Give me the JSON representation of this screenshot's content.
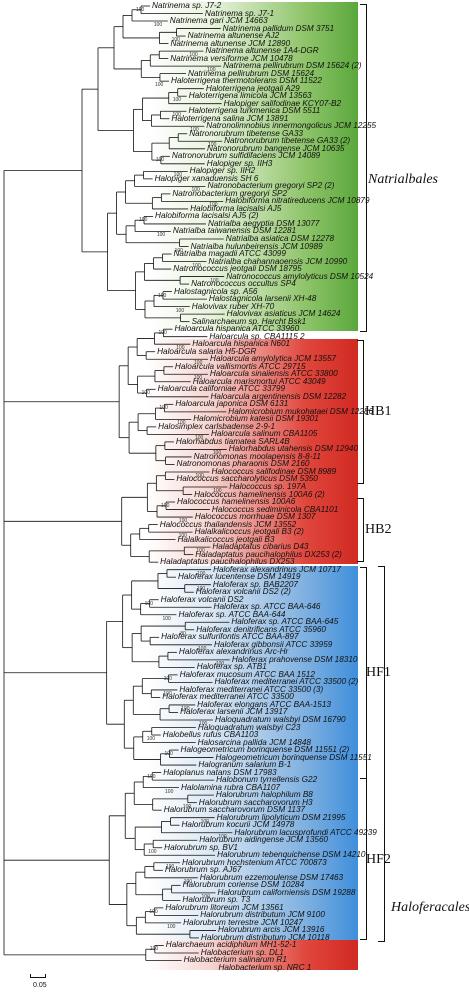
{
  "taxa": [
    "Natrinema sp. J7-2",
    "Natrinema sp. J7-1",
    "Natrinema gari JCM 14663",
    "Natrinema pallidum DSM 3751",
    "Natrinema altunense AJ2",
    "Natrinema altunense JCM 12890",
    "Natrinema altunense 1A4-DGR",
    "Natrinema versiforme JCM 10478",
    "Natrinema pellirubrum DSM 15624 (2)",
    "Natrinema pellirubrum DSM 15624",
    "Haloterrigena thermotolerans DSM 11522",
    "Haloterrigena jeotgali A29",
    "Haloterrigena limicola JCM 13563",
    "Halopiger salifodinae KCY07-B2",
    "Haloterrigena turkmenica DSM 5511",
    "Haloterrigena salina JCM 13891",
    "Natronolimnobius innermongolicus JCM 12255",
    "Natronorubrum tibetense GA33",
    "Natronorubrum tibetense GA33 (2)",
    "Natronorubrum bangense JCM 10635",
    "Natronorubrum sulfidifaciens JCM 14089",
    "Halopiger sp. IIH3",
    "Halopiger sp. IIH2",
    "Halopiger xanaduensis SH 6",
    "Natronobacterium gregoryi SP2 (2)",
    "Natronobacterium gregoryi SP2",
    "Halobiforma nitratireducens JCM 10879",
    "Halobiforma lacisalsi AJ5",
    "Halobiforma lacisalsi AJ5 (2)",
    "Natrialba aegyptia DSM 13077",
    "Natrialba taiwanensis DSM 12281",
    "Natrialba asiatica DSM 12278",
    "Natrialba hulunbeirensis JCM 10989",
    "Natrialba magadii ATCC 43099",
    "Natrialba chahannaoensis JCM 10990",
    "Natronococcus jeotgali DSM 18795",
    "Natronococcus amylolyticus DSM 10524",
    "Natronococcus occultus SP4",
    "Halostagnicola sp. A56",
    "Halostagnicola larsenii XH-48",
    "Halovivax ruber XH-70",
    "Halovivax asiaticus JCM 14624",
    "Salinarchaeum sp. Harcht Bsk1",
    "Haloarcula hispanica ATCC 33960",
    "Haloarcula sp. CBA1115 2",
    "Haloarcula hispanica N601",
    "Haloarcula salaria H5-DGR",
    "Haloarcula amylolytica JCM 13557",
    "Haloarcula vallismortis ATCC 29715",
    "Haloarcula sinaiiensis ATCC 33800",
    "Haloarcula marismortui ATCC 43049",
    "Haloarcula californiae ATCC 33799",
    "Haloarcula argentinensis DSM 12282",
    "Haloarcula japonica DSM 6131",
    "Halomicrobium mukohataei DSM 12286",
    "Halomicrobium katesii DSM 19301",
    "Halosimplex carlsbadense 2-9-1",
    "Haloarcula salinum CBA1105",
    "Halorhabdus tiamatea SARL4B",
    "Halorhabdus utahensis DSM 12940",
    "Natronomonas moolapensis 8-8-11",
    "Natronomonas pharaonis DSM 2160",
    "Halococcus salifodinae DSM 8989",
    "Halococcus saccharolyticus DSM 5350",
    "Halococcus sp. 197A",
    "Halococcus hamelinensis 100A6 (2)",
    "Halococcus hamelinensis 100A6",
    "Halococcus sediminicola CBA1101",
    "Halococcus morrhuae DSM 1307",
    "Halococcus thailandensis JCM 13552",
    "Halalkalicoccus jeotgali B3 (2)",
    "Halalkalicoccus jeotgali B3",
    "Haladaptatus cibarius D43",
    "Haladaptatus paucihalophilus DX253 (2)",
    "Haladaptatus paucihalophilus DX253",
    "Haloferax alexandrinus JCM 10717",
    "Haloferax lucentense DSM 14919",
    "Haloferax sp. BAB2207",
    "Haloferax volcanii DS2 (2)",
    "Haloferax volcanii DS2",
    "Haloferax sp. ATCC BAA-646",
    "Haloferax sp. ATCC BAA-644",
    "Haloferax sp. ATCC BAA-645",
    "Haloferax denitrificans ATCC 35960",
    "Haloferax sulfurifontis ATCC BAA-897",
    "Haloferax gibbonsii ATCC 33959",
    "Haloferax alexandrinus Arc-Hr",
    "Haloferax prahovense DSM 18310",
    "Haloferax sp. ATB1",
    "Haloferax mucosum ATCC BAA 1512",
    "Haloferax mediterranei ATCC 33500 (2)",
    "Haloferax mediterranei ATCC 33500 (3)",
    "Haloferax mediterranei ATCC 33500",
    "Haloferax elongans ATCC BAA-1513",
    "Haloferax larsenii JCM 13917",
    "Haloquadratum walsbyi DSM 16790",
    "Haloquadratum walsbyi C23",
    "Halobellus rufus CBA1103",
    "Halosarcina pallida JCM 14848",
    "Halogeometricum borinquense DSM 11551 (2)",
    "Halogeometricum borinquense DSM 11551",
    "Halogranum salarium B-1",
    "Haloplanus natans DSM 17983",
    "Halobonum tyrrellensis G22",
    "Halolamina rubra CBA1107",
    "Halorubrum halophilum B8",
    "Halorubrum saccharovorum H3",
    "Halorubrum saccharovorum DSM 1137",
    "Halorubrum lipolyticum DSM 21995",
    "Halorubrum kocurii JCM 14978",
    "Halorubrum lacusprofundi ATCC 49239",
    "Halorubrum aidingense JCM 13560",
    "Halorubrum sp. BV1",
    "Halorubrum tebenquichense DSM 14210",
    "Halorubrum hochstenium ATCC 700873",
    "Halorubrum sp. AJ67",
    "Halorubrum ezzemoulense DSM 17463",
    "Halorubrum coriense DSM 10284",
    "Halorubrum californiensis DSM 19288",
    "Halorubrum sp. T3",
    "Halorubrum litoreum JCM 13561",
    "Halorubrum distributum JCM 9100",
    "Halorubrum terrestre JCM 10247",
    "Halorubrum arcis JCM 13916",
    "Halorubrum distributum JCM 10118",
    "Halarchaeum acidiphilum MH1-52-1",
    "Halobacterium sp. DL1",
    "Halobacterium salinarum R1",
    "Halobacterium sp. NRC 1"
  ],
  "groups": {
    "natrialbales": "Natrialbales",
    "hb1": "HB1",
    "hb2": "HB2",
    "hf1": "HF1",
    "hf2": "HF2",
    "haloferacales": "Haloferacales"
  },
  "bootstrap": [
    "100",
    "100",
    "100",
    "100",
    "100",
    "100",
    "100",
    "100",
    "100",
    "100",
    "100",
    "100",
    "100",
    "100",
    "100",
    "100",
    "100",
    "100",
    "100",
    "100",
    "100",
    "100",
    "100",
    "100",
    "100",
    "100",
    "100",
    "100",
    "100",
    "100",
    "100",
    "100",
    "100",
    "100",
    "100",
    "100",
    "100",
    "100",
    "100",
    "100",
    "80",
    "100",
    "100",
    "100",
    "100",
    "100",
    "100",
    "100",
    "100",
    "100",
    "100",
    "100",
    "100",
    "100",
    "100",
    "100",
    "100",
    "100",
    "100",
    "100",
    "100",
    "100",
    "100",
    "100",
    "100",
    "100",
    "100",
    "100",
    "100",
    "100",
    "100",
    "100",
    "100",
    "100",
    "100",
    "100",
    "100",
    "100",
    "100",
    "100",
    "100",
    "100",
    "100",
    "100",
    "100",
    "100",
    "100",
    "100",
    "100",
    "100",
    "100"
  ],
  "scale_bar": {
    "label": "0.05"
  },
  "colors": {
    "natrialbales": "#5aa83c",
    "hb": "#d12a22",
    "haloferacales": "#3f8fdc"
  }
}
